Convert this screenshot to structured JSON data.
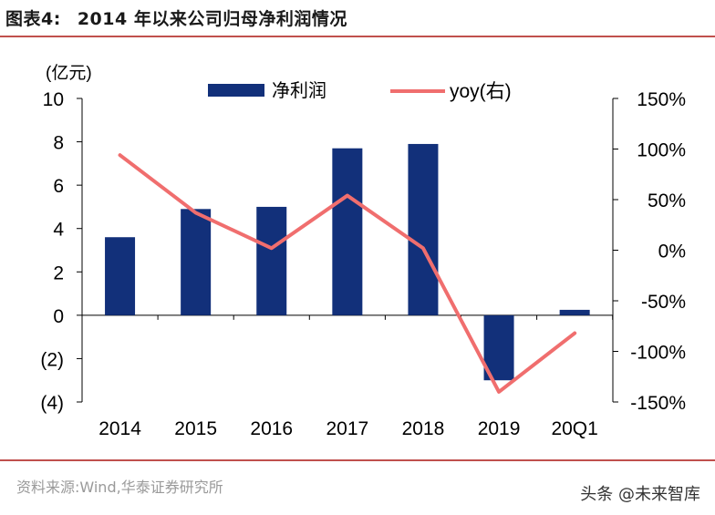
{
  "figure": {
    "label": "图表4:",
    "title": "2014 年以来公司归母净利润情况"
  },
  "source": "资料来源:Wind,华泰证券研究所",
  "watermark": "头条 @未来智库",
  "colors": {
    "bar": "#12307a",
    "line": "#f06e6e",
    "rule": "#c0504d"
  },
  "chart_data": {
    "type": "bar",
    "categories": [
      "2014",
      "2015",
      "2016",
      "2017",
      "2018",
      "2019",
      "20Q1"
    ],
    "series": [
      {
        "name": "净利润",
        "type": "bar",
        "axis": "left",
        "values": [
          3.6,
          4.9,
          5.0,
          7.7,
          7.9,
          -3.0,
          0.25
        ]
      },
      {
        "name": "yoy(右)",
        "type": "line",
        "axis": "right",
        "values": [
          0.94,
          0.37,
          0.02,
          0.54,
          0.02,
          -1.4,
          -0.82
        ]
      }
    ],
    "y_left": {
      "unit_label": "(亿元)",
      "ylim": [
        -4,
        10
      ],
      "ticks": [
        10,
        8,
        6,
        4,
        2,
        0,
        -2,
        -4
      ],
      "tick_labels": [
        "10",
        "8",
        "6",
        "4",
        "2",
        "0",
        "(2)",
        "(4)"
      ]
    },
    "y_right": {
      "ylim": [
        -1.5,
        1.5
      ],
      "ticks": [
        1.5,
        1.0,
        0.5,
        0,
        -0.5,
        -1.0,
        -1.5
      ],
      "tick_labels": [
        "150%",
        "100%",
        "50%",
        "0%",
        "-50%",
        "-100%",
        "-150%"
      ]
    },
    "legend": [
      {
        "label": "净利润",
        "kind": "bar"
      },
      {
        "label": "yoy(右)",
        "kind": "line"
      }
    ],
    "legend_position": "top"
  }
}
